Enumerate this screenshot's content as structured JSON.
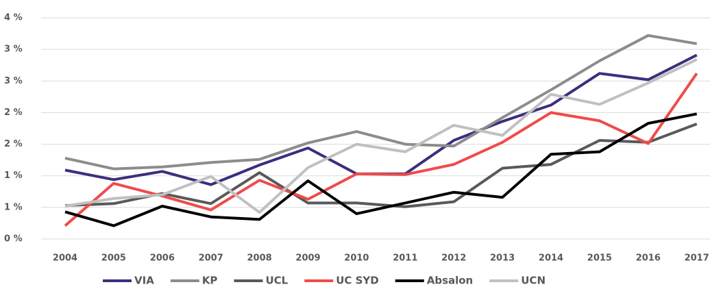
{
  "chart_data": {
    "type": "line",
    "categories": [
      "2004",
      "2005",
      "2006",
      "2007",
      "2008",
      "2009",
      "2010",
      "2011",
      "2012",
      "2013",
      "2014",
      "2015",
      "2016",
      "2017"
    ],
    "series": [
      {
        "name": "VIA",
        "color": "#3b2e7e",
        "values": [
          1.09,
          0.94,
          1.07,
          0.86,
          1.17,
          1.44,
          1.03,
          1.03,
          1.56,
          1.86,
          2.12,
          2.62,
          2.52,
          2.91
        ]
      },
      {
        "name": "KP",
        "color": "#8c8c8c",
        "values": [
          1.28,
          1.11,
          1.14,
          1.21,
          1.26,
          1.52,
          1.7,
          1.5,
          1.47,
          1.92,
          2.36,
          2.82,
          3.22,
          3.09
        ]
      },
      {
        "name": "UCL",
        "color": "#595959",
        "values": [
          0.53,
          0.56,
          0.72,
          0.56,
          1.05,
          0.57,
          0.57,
          0.51,
          0.59,
          1.12,
          1.18,
          1.56,
          1.53,
          1.82
        ]
      },
      {
        "name": "UC SYD",
        "color": "#f04b4b",
        "values": [
          0.21,
          0.88,
          0.68,
          0.46,
          0.93,
          0.63,
          1.03,
          1.02,
          1.18,
          1.53,
          2.0,
          1.87,
          1.51,
          2.62
        ]
      },
      {
        "name": "Absalon",
        "color": "#000000",
        "values": [
          0.43,
          0.21,
          0.52,
          0.35,
          0.31,
          0.92,
          0.4,
          0.57,
          0.74,
          0.66,
          1.34,
          1.38,
          1.83,
          1.98
        ]
      },
      {
        "name": "UCN",
        "color": "#c0c0c0",
        "values": [
          0.52,
          0.64,
          0.7,
          0.99,
          0.42,
          1.13,
          1.5,
          1.38,
          1.8,
          1.64,
          2.29,
          2.13,
          2.47,
          2.84
        ]
      }
    ],
    "ylim": [
      0,
      3.5
    ],
    "yticks": [
      {
        "value": 0,
        "label": "0 %"
      },
      {
        "value": 0.5,
        "label": "1 %"
      },
      {
        "value": 1,
        "label": "1 %"
      },
      {
        "value": 1.5,
        "label": "2 %"
      },
      {
        "value": 2,
        "label": "2 %"
      },
      {
        "value": 2.5,
        "label": "3 %"
      },
      {
        "value": 3,
        "label": "3 %"
      },
      {
        "value": 3.5,
        "label": "4 %"
      }
    ],
    "grid": true,
    "legend": "bottom"
  }
}
